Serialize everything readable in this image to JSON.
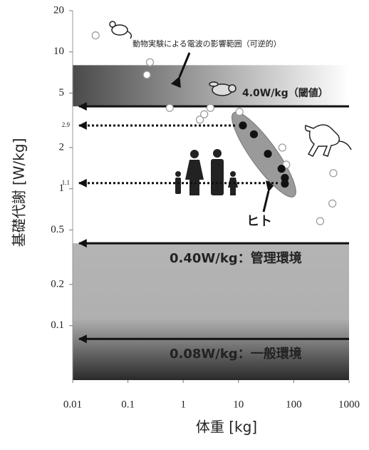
{
  "chart_data": {
    "type": "scatter",
    "x_label": "体重 [kg]",
    "y_label": "基礎代謝 [W/kg]",
    "xlim": [
      0.01,
      1000
    ],
    "ylim": [
      0.04,
      20
    ],
    "log_x": true,
    "log_y": true,
    "xticks": [
      0.01,
      0.1,
      1,
      10,
      100,
      1000
    ],
    "yticks": [
      20,
      10,
      5,
      2,
      1,
      0.5,
      0.2,
      0.1
    ],
    "series": [
      {
        "color": "#999999",
        "filled": false,
        "x": [
          0.026,
          0.25,
          0.22,
          0.57,
          2.0,
          2.4,
          3.1,
          10.4,
          62,
          73,
          520,
          500,
          300
        ],
        "values": [
          13.2,
          8.4,
          6.8,
          3.9,
          3.2,
          3.5,
          3.9,
          3.65,
          2.0,
          1.5,
          1.3,
          0.78,
          0.58
        ]
      },
      {
        "color": "#111111",
        "filled": true,
        "x": [
          12,
          19,
          34,
          60,
          69,
          69
        ],
        "values": [
          2.9,
          2.5,
          1.8,
          1.4,
          1.2,
          1.09
        ]
      }
    ],
    "shaded_regions": [
      {
        "from": 4.0,
        "to": 8
      },
      {
        "from": 0.04,
        "to": 0.4
      }
    ],
    "reference_lines": [
      {
        "value": 4.0,
        "label": "4.0W/kg（閾値）"
      },
      {
        "value": 0.4,
        "label": "0.40W/kg：管理環境"
      },
      {
        "value": 0.08,
        "label": "0.08W/kg：一般環境"
      }
    ],
    "levels": [
      2.9,
      1.1
    ],
    "annotations": [
      "動物実験による電波の影響範囲（可逆的）",
      "ヒト"
    ]
  }
}
